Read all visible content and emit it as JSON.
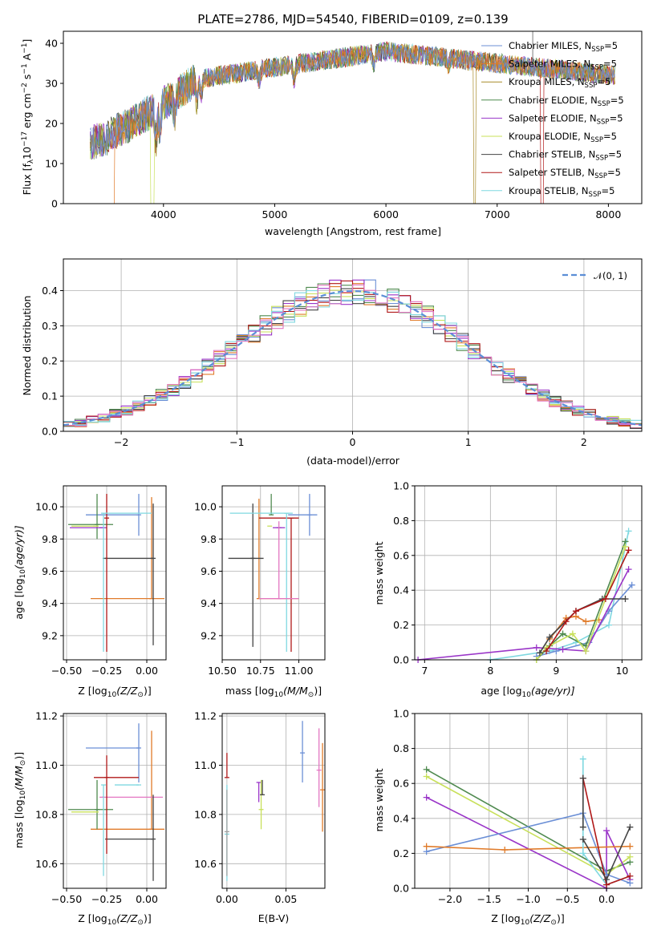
{
  "chart_data": [
    {
      "type": "line",
      "title": "PLATE=2786, MJD=54540, FIBERID=0109, z=0.139",
      "xlabel": "wavelength [Angstrom, rest frame]",
      "ylabel_main": "Flux [f",
      "ylabel_sub": "λ",
      "ylabel_rest": "10",
      "ylabel_exp": "−17",
      "ylabel_units": " erg cm",
      "ylabel_exp2": "−2",
      "ylabel_units2": " s",
      "ylabel_exp3": "−1",
      "ylabel_units3": " A",
      "ylabel_exp4": "−1",
      "ylabel_close": "]",
      "xlim": [
        3100,
        8300
      ],
      "ylim": [
        0,
        43
      ],
      "x_ticks": [
        4000,
        5000,
        6000,
        7000,
        8000
      ],
      "y_ticks": [
        0,
        10,
        20,
        30,
        40
      ],
      "spectrum_range": [
        3340,
        8060
      ],
      "series": [
        {
          "name": "Chabrier MILES, N",
          "sub": "SSP",
          "suffix": "=5",
          "color": "#6b8fd6"
        },
        {
          "name": "Salpeter MILES, N",
          "sub": "SSP",
          "suffix": "=5",
          "color": "#e07b2a"
        },
        {
          "name": "Kroupa MILES, N",
          "sub": "SSP",
          "suffix": "=5",
          "color": "#a88b2a"
        },
        {
          "name": "Chabrier ELODIE, N",
          "sub": "SSP",
          "suffix": "=5",
          "color": "#4f8a4f"
        },
        {
          "name": "Salpeter ELODIE, N",
          "sub": "SSP",
          "suffix": "=5",
          "color": "#9a35c8"
        },
        {
          "name": "Kroupa ELODIE, N",
          "sub": "SSP",
          "suffix": "=5",
          "color": "#c8e05a"
        },
        {
          "name": "Chabrier STELIB, N",
          "sub": "SSP",
          "suffix": "=5",
          "color": "#444444"
        },
        {
          "name": "Salpeter STELIB, N",
          "sub": "SSP",
          "suffix": "=5",
          "color": "#b01818"
        },
        {
          "name": "Kroupa STELIB, N",
          "sub": "SSP",
          "suffix": "=5",
          "color": "#7fd8e0"
        }
      ]
    },
    {
      "type": "histogram",
      "xlabel": "(data-model)/error",
      "ylabel": "Normed distribution",
      "xlim": [
        -2.5,
        2.5
      ],
      "ylim": [
        0,
        0.49
      ],
      "x_ticks": [
        -2,
        -1,
        0,
        1,
        2
      ],
      "y_ticks": [
        0.0,
        0.1,
        0.2,
        0.3,
        0.4
      ],
      "bin_width": 0.1,
      "legend": "𝒩(0, 1)",
      "grid": true
    },
    {
      "type": "scatter",
      "xlabel": "Z [log",
      "xlabel_sub": "10",
      "xlabel_rest": "(Z/Z",
      "xlabel_sub2": "⊙",
      "xlabel_close": ")]",
      "ylabel": "age  [log",
      "ylabel_sub": "10",
      "ylabel_rest": "(age/yr)]",
      "xlim": [
        -0.52,
        0.12
      ],
      "ylim": [
        9.05,
        10.13
      ],
      "x_ticks": [
        -0.5,
        -0.25,
        0.0
      ],
      "x_tick_labels": [
        "−0.50",
        "−0.25",
        "0.00"
      ],
      "y_ticks": [
        9.2,
        9.4,
        9.6,
        9.8,
        10.0
      ],
      "points": [
        {
          "x": -0.05,
          "y": 9.95,
          "xerr": [
            0.33,
            0.0
          ],
          "yerr": [
            0.13,
            0.13
          ],
          "color": "#6b8fd6"
        },
        {
          "x": 0.03,
          "y": 9.43,
          "xerr": [
            0.38,
            0.08
          ],
          "yerr": [
            0.0,
            0.63
          ],
          "color": "#e07b2a"
        },
        {
          "x": -0.31,
          "y": 9.89,
          "xerr": [
            0.18,
            0.1
          ],
          "yerr": [
            0.09,
            0.19
          ],
          "color": "#4f8a4f"
        },
        {
          "x": -0.28,
          "y": 9.87,
          "xerr": [
            0.2,
            0.03
          ],
          "yerr": [
            0.0,
            0.0
          ],
          "color": "#9a35c8"
        },
        {
          "x": -0.32,
          "y": 9.88,
          "xerr": [
            0.15,
            0.02
          ],
          "yerr": [
            0.0,
            0.0
          ],
          "color": "#c8e05a"
        },
        {
          "x": -0.26,
          "y": 9.68,
          "xerr": [
            0.0,
            0.3
          ],
          "yerr": [
            0.0,
            0.0
          ],
          "color": "#444444"
        },
        {
          "x": -0.25,
          "y": 9.93,
          "xerr": [
            0.0,
            0.0
          ],
          "yerr": [
            0.83,
            0.15
          ],
          "color": "#b01818"
        },
        {
          "x": -0.27,
          "y": 9.96,
          "xerr": [
            0.0,
            0.3
          ],
          "yerr": [
            0.86,
            0.0
          ],
          "color": "#7fd8e0"
        },
        {
          "x": 0.04,
          "y": 9.68,
          "xerr": [
            0.0,
            0.0
          ],
          "yerr": [
            0.54,
            0.34
          ],
          "color": "#444444"
        }
      ]
    },
    {
      "type": "scatter",
      "xlabel": "mass [log",
      "xlabel_sub": "10",
      "xlabel_rest": "(M/M",
      "xlabel_sub2": "⊙",
      "xlabel_close": ")]",
      "xlim": [
        10.5,
        11.17
      ],
      "ylim": [
        9.05,
        10.13
      ],
      "x_ticks": [
        10.5,
        10.75,
        11.0
      ],
      "x_tick_labels": [
        "10.50",
        "10.75",
        "11.00"
      ],
      "y_ticks": [
        9.2,
        9.4,
        9.6,
        9.8,
        10.0
      ],
      "points": [
        {
          "x": 11.07,
          "y": 9.95,
          "xerr": [
            0.14,
            0.05
          ],
          "yerr": [
            0.13,
            0.13
          ],
          "color": "#6b8fd6"
        },
        {
          "x": 10.74,
          "y": 9.43,
          "xerr": [
            0.0,
            0.26
          ],
          "yerr": [
            0.0,
            0.62
          ],
          "color": "#e07b2a"
        },
        {
          "x": 10.82,
          "y": 9.95,
          "xerr": [
            0.0,
            0.0
          ],
          "yerr": [
            0.0,
            0.13
          ],
          "color": "#4f8a4f"
        },
        {
          "x": 10.87,
          "y": 9.87,
          "xerr": [
            0.04,
            0.04
          ],
          "yerr": [
            0.0,
            0.0
          ],
          "color": "#9a35c8"
        },
        {
          "x": 10.81,
          "y": 9.88,
          "xerr": [
            0.0,
            0.0
          ],
          "yerr": [
            0.0,
            0.0
          ],
          "color": "#c8e05a"
        },
        {
          "x": 10.7,
          "y": 9.68,
          "xerr": [
            0.16,
            0.07
          ],
          "yerr": [
            0.55,
            0.34
          ],
          "color": "#444444"
        },
        {
          "x": 10.95,
          "y": 9.93,
          "xerr": [
            0.21,
            0.05
          ],
          "yerr": [
            0.83,
            0.0
          ],
          "color": "#b01818"
        },
        {
          "x": 10.92,
          "y": 9.96,
          "xerr": [
            0.37,
            0.04
          ],
          "yerr": [
            0.86,
            0.0
          ],
          "color": "#7fd8e0"
        },
        {
          "x": 10.87,
          "y": 9.43,
          "xerr": [
            0.13,
            0.13
          ],
          "yerr": [
            0.0,
            0.48
          ],
          "color": "#e377c2"
        }
      ]
    },
    {
      "type": "line",
      "xlabel": "age  [log",
      "xlabel_sub": "10",
      "xlabel_rest": "(age/yr)]",
      "ylabel": "mass weight",
      "xlim": [
        6.85,
        10.3
      ],
      "ylim": [
        0,
        1.0
      ],
      "x_ticks": [
        7,
        8,
        9,
        10
      ],
      "y_ticks": [
        0.0,
        0.2,
        0.4,
        0.6,
        0.8,
        1.0
      ],
      "grid": true,
      "series": [
        {
          "color": "#7fd8e0",
          "x": [
            8.0,
            8.9,
            9.3,
            9.8,
            10.1
          ],
          "y": [
            0.0,
            0.05,
            0.1,
            0.2,
            0.74
          ]
        },
        {
          "color": "#6b8fd6",
          "x": [
            8.7,
            9.0,
            9.5,
            9.8,
            10.15
          ],
          "y": [
            0.02,
            0.05,
            0.1,
            0.28,
            0.43
          ]
        },
        {
          "color": "#e07b2a",
          "x": [
            8.9,
            9.15,
            9.3,
            9.45,
            9.65
          ],
          "y": [
            0.12,
            0.24,
            0.25,
            0.22,
            0.23
          ]
        },
        {
          "color": "#4f8a4f",
          "x": [
            8.7,
            8.9,
            9.1,
            9.45,
            10.05
          ],
          "y": [
            0.0,
            0.08,
            0.15,
            0.08,
            0.68
          ]
        },
        {
          "color": "#9a35c8",
          "x": [
            6.9,
            8.7,
            9.1,
            9.45,
            10.1
          ],
          "y": [
            0.0,
            0.07,
            0.06,
            0.05,
            0.52
          ]
        },
        {
          "color": "#c8e05a",
          "x": [
            8.7,
            8.85,
            9.25,
            9.45,
            10.05
          ],
          "y": [
            0.0,
            0.07,
            0.15,
            0.05,
            0.65
          ]
        },
        {
          "color": "#444444",
          "x": [
            8.75,
            8.9,
            9.3,
            9.7,
            10.05
          ],
          "y": [
            0.04,
            0.13,
            0.28,
            0.35,
            0.35
          ]
        },
        {
          "color": "#b01818",
          "x": [
            8.85,
            9.15,
            9.3,
            9.75,
            10.1
          ],
          "y": [
            0.05,
            0.22,
            0.28,
            0.35,
            0.63
          ]
        }
      ]
    },
    {
      "type": "scatter",
      "xlabel": "Z [log",
      "xlabel_sub": "10",
      "xlabel_rest": "(Z/Z",
      "xlabel_sub2": "⊙",
      "xlabel_close": ")]",
      "ylabel": "mass [log",
      "ylabel_sub": "10",
      "ylabel_rest": "(M/M",
      "ylabel_sub2": "⊙",
      "ylabel_close": ")]",
      "xlim": [
        -0.52,
        0.12
      ],
      "ylim": [
        10.5,
        11.21
      ],
      "x_ticks": [
        -0.5,
        -0.25,
        0.0
      ],
      "x_tick_labels": [
        "−0.50",
        "−0.25",
        "0.00"
      ],
      "y_ticks": [
        10.6,
        10.8,
        11.0,
        11.2
      ],
      "points": [
        {
          "x": -0.05,
          "y": 11.07,
          "xerr": [
            0.33,
            0.0
          ],
          "yerr": [
            0.14,
            0.1
          ],
          "color": "#6b8fd6"
        },
        {
          "x": 0.03,
          "y": 10.74,
          "xerr": [
            0.38,
            0.08
          ],
          "yerr": [
            0.0,
            0.4
          ],
          "color": "#e07b2a"
        },
        {
          "x": -0.31,
          "y": 10.82,
          "xerr": [
            0.18,
            0.1
          ],
          "yerr": [
            0.08,
            0.12
          ],
          "color": "#4f8a4f"
        },
        {
          "x": -0.28,
          "y": 10.87,
          "xerr": [
            0.0,
            0.38
          ],
          "yerr": [
            0.0,
            0.0
          ],
          "color": "#e377c2"
        },
        {
          "x": -0.32,
          "y": 10.81,
          "xerr": [
            0.15,
            0.02
          ],
          "yerr": [
            0.0,
            0.0
          ],
          "color": "#c8e05a"
        },
        {
          "x": 0.04,
          "y": 10.7,
          "xerr": [
            0.3,
            0.0
          ],
          "yerr": [
            0.17,
            0.18
          ],
          "color": "#444444"
        },
        {
          "x": -0.25,
          "y": 10.95,
          "xerr": [
            0.08,
            0.2
          ],
          "yerr": [
            0.31,
            0.09
          ],
          "color": "#b01818"
        },
        {
          "x": -0.27,
          "y": 10.92,
          "xerr": [
            0.0,
            0.0
          ],
          "yerr": [
            0.37,
            0.0
          ],
          "color": "#7fd8e0"
        },
        {
          "x": -0.05,
          "y": 10.92,
          "xerr": [
            0.15,
            0.0
          ],
          "yerr": [
            0.0,
            0.0
          ],
          "color": "#7fd8e0"
        }
      ]
    },
    {
      "type": "scatter",
      "xlabel": "E(B-V)",
      "xlim": [
        -0.004,
        0.083
      ],
      "ylim": [
        10.5,
        11.21
      ],
      "x_ticks": [
        0.0,
        0.05
      ],
      "x_tick_labels": [
        "0.00",
        "0.05"
      ],
      "y_ticks": [
        10.6,
        10.8,
        11.0,
        11.2
      ],
      "points": [
        {
          "x": 0.064,
          "y": 11.05,
          "yerr": [
            0.12,
            0.13
          ],
          "color": "#6b8fd6"
        },
        {
          "x": 0.081,
          "y": 10.9,
          "yerr": [
            0.17,
            0.19
          ],
          "color": "#e07b2a"
        },
        {
          "x": 0.078,
          "y": 10.98,
          "yerr": [
            0.15,
            0.17
          ],
          "color": "#e377c2"
        },
        {
          "x": 0.027,
          "y": 10.93,
          "yerr": [
            0.08,
            0.0
          ],
          "color": "#9a35c8"
        },
        {
          "x": 0.029,
          "y": 10.82,
          "yerr": [
            0.08,
            0.12
          ],
          "color": "#c8e05a"
        },
        {
          "x": 0.03,
          "y": 10.88,
          "yerr": [
            0.0,
            0.06
          ],
          "color": "#444444"
        },
        {
          "x": 0.0,
          "y": 10.95,
          "yerr": [
            0.0,
            0.1
          ],
          "color": "#b01818"
        },
        {
          "x": 0.0,
          "y": 10.72,
          "yerr": [
            0.19,
            0.2
          ],
          "color": "#7fd8e0"
        },
        {
          "x": 0.0,
          "y": 10.73,
          "yerr": [
            0.18,
            0.17
          ],
          "color": "#a0a0a0"
        }
      ]
    },
    {
      "type": "line",
      "xlabel": "Z [log",
      "xlabel_sub": "10",
      "xlabel_rest": "(Z/Z",
      "xlabel_sub2": "⊙",
      "xlabel_close": ")]",
      "ylabel": "mass weight",
      "xlim": [
        -2.45,
        0.45
      ],
      "ylim": [
        0,
        1.0
      ],
      "x_ticks": [
        -2.0,
        -1.5,
        -1.0,
        -0.5,
        0.0
      ],
      "x_tick_labels": [
        "−2.0",
        "−1.5",
        "−1.0",
        "−0.5",
        "0.0"
      ],
      "y_ticks": [
        0.0,
        0.2,
        0.4,
        0.6,
        0.8,
        1.0
      ],
      "grid": true,
      "series": [
        {
          "color": "#4f8a4f",
          "x": [
            -2.3,
            0.0,
            0.3
          ],
          "y": [
            0.68,
            0.1,
            0.15
          ]
        },
        {
          "color": "#c8e05a",
          "x": [
            -2.3,
            0.0,
            0.3
          ],
          "y": [
            0.64,
            0.08,
            0.18
          ]
        },
        {
          "color": "#9a35c8",
          "x": [
            -2.3,
            0.0,
            0.0,
            0.3
          ],
          "y": [
            0.52,
            0.0,
            0.33,
            0.05
          ]
        },
        {
          "color": "#6b8fd6",
          "x": [
            -2.3,
            -0.3,
            0.0,
            0.3
          ],
          "y": [
            0.21,
            0.43,
            0.08,
            0.03
          ]
        },
        {
          "color": "#e07b2a",
          "x": [
            -2.3,
            -1.3,
            0.3
          ],
          "y": [
            0.24,
            0.22,
            0.24
          ]
        },
        {
          "color": "#7fd8e0",
          "x": [
            -0.3,
            -0.3,
            0.0,
            0.3
          ],
          "y": [
            0.74,
            0.2,
            0.02,
            0.07
          ]
        },
        {
          "color": "#b01818",
          "x": [
            -0.3,
            0.0,
            0.3
          ],
          "y": [
            0.63,
            0.02,
            0.07
          ]
        },
        {
          "color": "#444444",
          "x": [
            -0.3,
            0.0,
            0.3
          ],
          "y": [
            0.28,
            0.05,
            0.35
          ]
        },
        {
          "color": "#444444",
          "x": [
            -0.3,
            -0.3
          ],
          "y": [
            0.35,
            0.63
          ]
        }
      ]
    }
  ]
}
